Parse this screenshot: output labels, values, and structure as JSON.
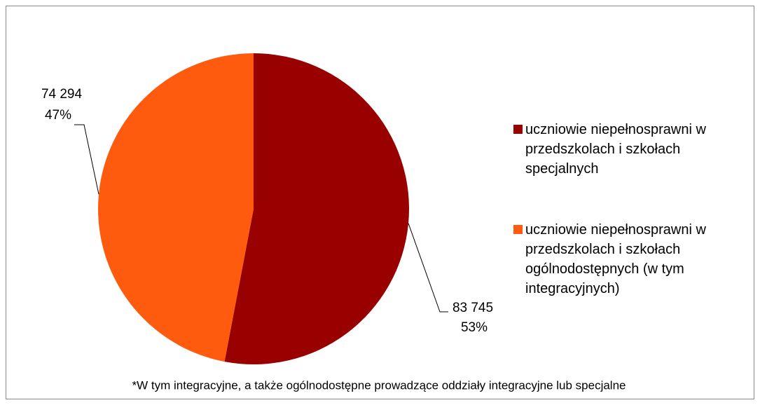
{
  "chart_data": {
    "type": "pie",
    "categories": [
      "uczniowie niepełnosprawni w przedszkolach i szkołach specjalnych",
      "uczniowie niepełnosprawni w przedszkolach i szkołach ogólnodostępnych (w tym integracyjnych)"
    ],
    "values": [
      83745,
      74294
    ],
    "value_labels": [
      "83 745",
      "74 294"
    ],
    "percents": [
      53,
      47
    ],
    "percent_labels": [
      "53%",
      "47%"
    ],
    "colors": [
      "#990000",
      "#ff5b0f"
    ],
    "legend": "right",
    "annotation": "*W tym integracyjne, a także ogólnodostępne prowadzące oddziały integracyjne lub specjalne"
  }
}
